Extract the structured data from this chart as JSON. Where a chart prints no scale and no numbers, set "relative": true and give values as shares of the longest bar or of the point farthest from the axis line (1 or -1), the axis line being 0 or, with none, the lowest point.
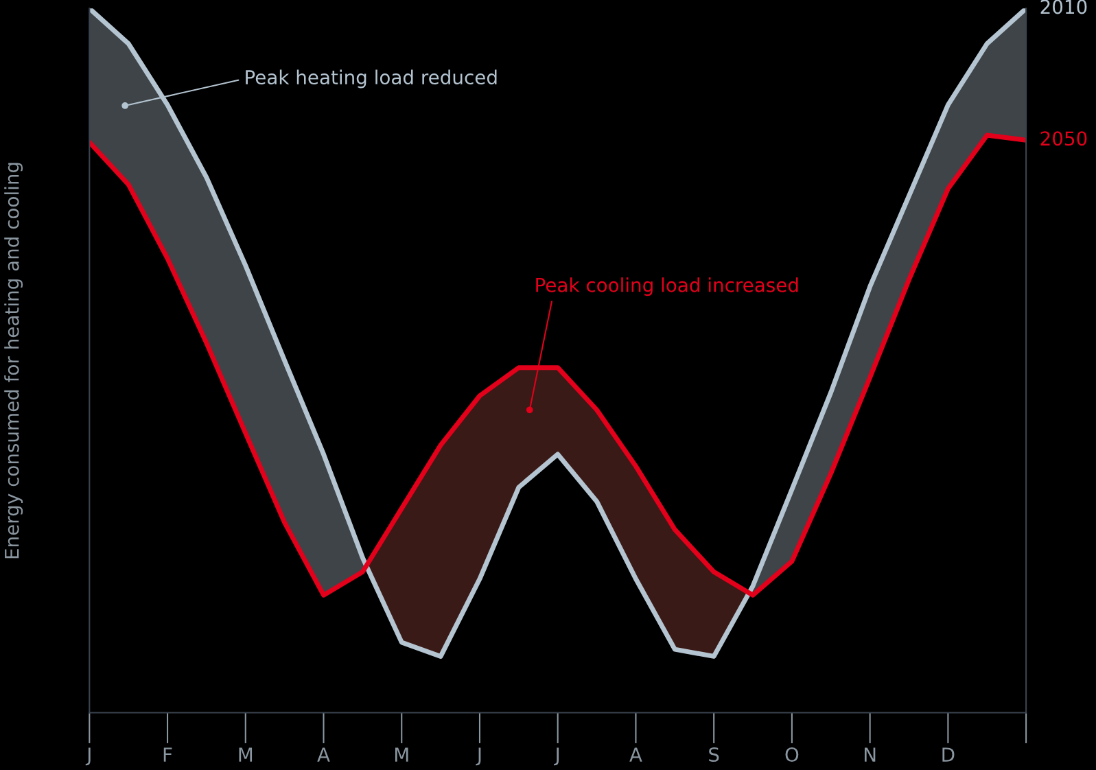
{
  "chart_data": {
    "type": "line",
    "relative": true,
    "ylabel": "Energy consumed for heating and cooling",
    "categories": [
      "J",
      null,
      "F",
      null,
      "M",
      null,
      "A",
      null,
      "M",
      null,
      "J",
      null,
      "J",
      null,
      "A",
      null,
      "S",
      null,
      "O",
      null,
      "N",
      null,
      "D",
      null,
      null
    ],
    "series": [
      {
        "name": "2010",
        "color": "#b4c4d0",
        "values": [
          1.0,
          0.95,
          0.863,
          0.76,
          0.635,
          0.5,
          0.367,
          0.22,
          0.1,
          0.08,
          0.19,
          0.32,
          0.367,
          0.3,
          0.19,
          0.09,
          0.08,
          0.18,
          0.317,
          0.455,
          0.605,
          0.734,
          0.863,
          0.95,
          1.0
        ]
      },
      {
        "name": "2050",
        "color": "#e3001b",
        "values": [
          0.81,
          0.75,
          0.645,
          0.525,
          0.397,
          0.27,
          0.167,
          0.2,
          0.29,
          0.38,
          0.45,
          0.49,
          0.49,
          0.43,
          0.35,
          0.26,
          0.2,
          0.167,
          0.215,
          0.34,
          0.476,
          0.615,
          0.744,
          0.82,
          0.813
        ]
      }
    ],
    "annotations": [
      "Peak heating load reduced",
      "Peak cooling load increased"
    ],
    "grid": false,
    "legend": false,
    "marker": "none",
    "line_style": "solid"
  }
}
